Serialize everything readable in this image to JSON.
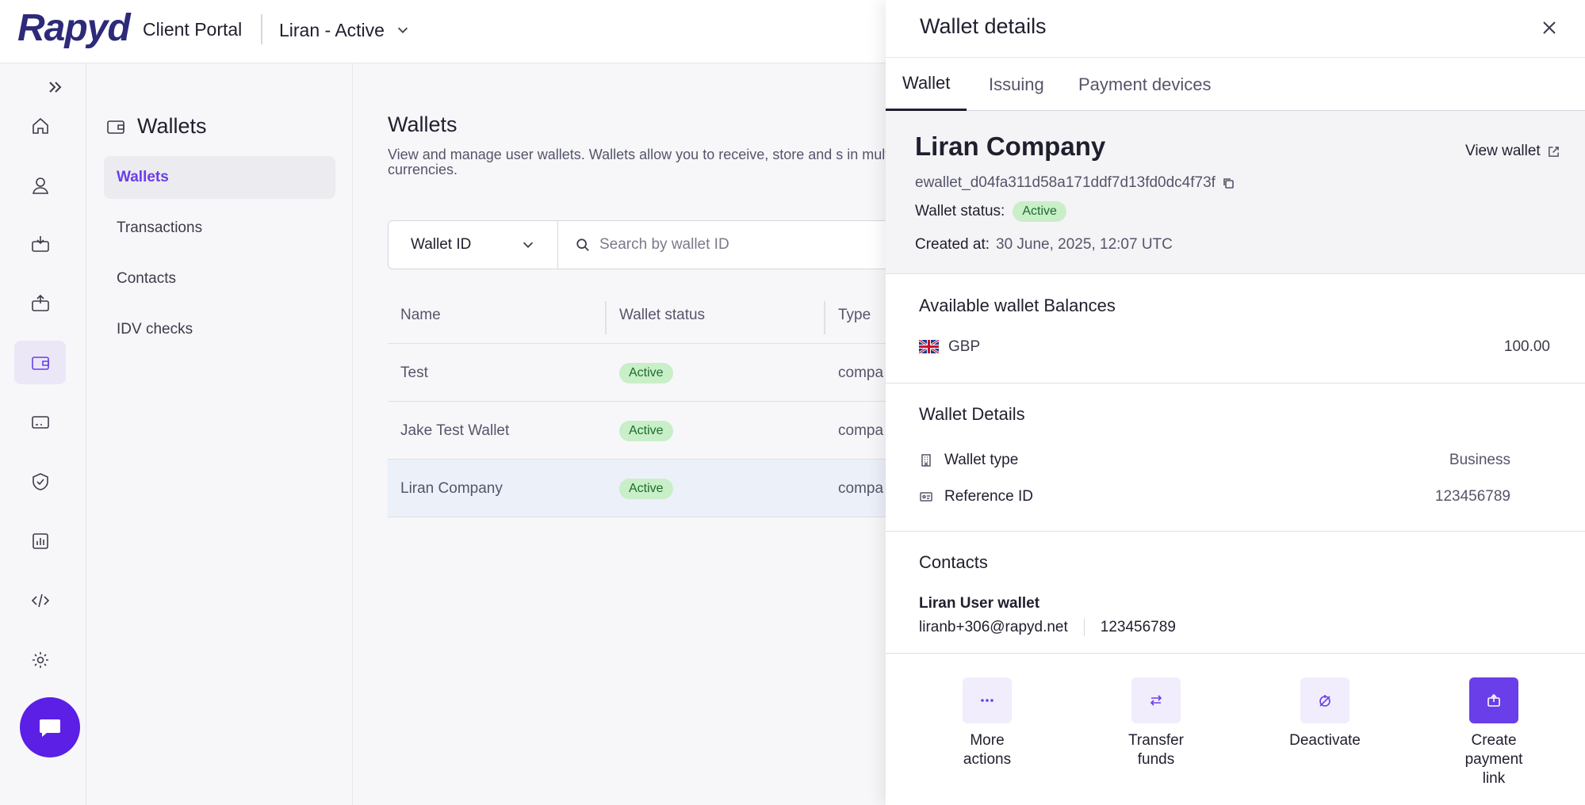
{
  "header": {
    "logo": "Rapyd",
    "portal_title": "Client Portal",
    "account": "Liran - Active"
  },
  "rail": {
    "items": [
      "home-icon",
      "user-icon",
      "collect-icon",
      "disburse-icon",
      "wallet-icon",
      "card-icon",
      "protect-icon",
      "reports-icon",
      "developers-icon",
      "settings-icon"
    ],
    "active": "wallet-icon"
  },
  "subnav": {
    "title": "Wallets",
    "items": [
      {
        "label": "Wallets",
        "active": true
      },
      {
        "label": "Transactions",
        "active": false
      },
      {
        "label": "Contacts",
        "active": false
      },
      {
        "label": "IDV checks",
        "active": false
      }
    ]
  },
  "main": {
    "title": "Wallets",
    "description": "View and manage user wallets. Wallets allow you to receive, store and s in multiple currencies.",
    "filter": {
      "selected": "Wallet ID",
      "search_placeholder": "Search by wallet ID"
    },
    "table": {
      "columns": [
        "Name",
        "Wallet status",
        "Type"
      ],
      "rows": [
        {
          "name": "Test",
          "status": "Active",
          "type": "compa"
        },
        {
          "name": "Jake Test Wallet",
          "status": "Active",
          "type": "compa"
        },
        {
          "name": "Liran Company",
          "status": "Active",
          "type": "compa",
          "selected": true
        }
      ]
    }
  },
  "drawer": {
    "title": "Wallet details",
    "tabs": [
      "Wallet",
      "Issuing",
      "Payment devices"
    ],
    "active_tab": "Wallet",
    "wallet": {
      "name": "Liran Company",
      "view_link": "View wallet",
      "id": "ewallet_d04fa311d58a171ddf7d13fd0dc4f73f",
      "status_label": "Wallet status:",
      "status": "Active",
      "created_label": "Created at:",
      "created_value": "30 June, 2025, 12:07 UTC"
    },
    "balances": {
      "title": "Available wallet Balances",
      "rows": [
        {
          "currency": "GBP",
          "amount": "100.00",
          "flag": "gb-flag-icon"
        }
      ]
    },
    "details": {
      "title": "Wallet Details",
      "rows": [
        {
          "label": "Wallet type",
          "value": "Business",
          "icon": "building-icon"
        },
        {
          "label": "Reference ID",
          "value": "123456789",
          "icon": "id-card-icon"
        }
      ]
    },
    "contacts": {
      "title": "Contacts",
      "name": "Liran User wallet",
      "email": "liranb+306@rapyd.net",
      "reference": "123456789"
    },
    "actions": [
      {
        "label": "More\nactions",
        "icon": "more-dots-icon"
      },
      {
        "label": "Transfer\nfunds",
        "icon": "transfer-icon"
      },
      {
        "label": "Deactivate",
        "icon": "deactivate-icon"
      },
      {
        "label": "Create\npayment\nlink",
        "icon": "payment-link-icon"
      }
    ]
  }
}
